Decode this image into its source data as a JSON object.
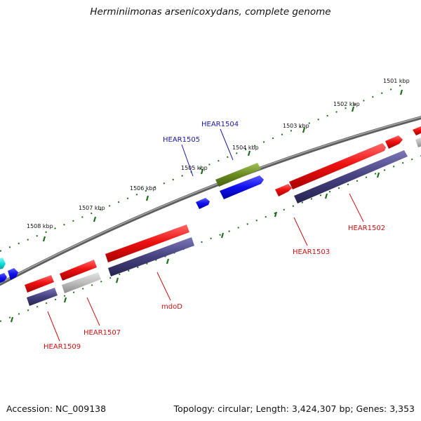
{
  "title": "Herminiimonas arsenicoxydans, complete genome",
  "footer": {
    "accession": "Accession: NC_009138",
    "stats": "Topology: circular; Length: 3,424,307 bp; Genes: 3,353"
  },
  "scale_labels": [
    "1501 kbp",
    "1502 kbp",
    "1503 kbp",
    "1504 kbp",
    "1505 kbp",
    "1506 kbp",
    "1507 kbp",
    "1508 kbp"
  ],
  "gene_labels": [
    {
      "text": "HEAR1504",
      "color": "#1a1aa6"
    },
    {
      "text": "HEAR1505",
      "color": "#1a1aa6"
    },
    {
      "text": "HEAR1502",
      "color": "#cc1111"
    },
    {
      "text": "HEAR1503",
      "color": "#cc1111"
    },
    {
      "text": "mdoD",
      "color": "#cc1111"
    },
    {
      "text": "HEAR1507",
      "color": "#cc1111"
    },
    {
      "text": "HEAR1509",
      "color": "#cc1111"
    }
  ],
  "colors": {
    "backbone": "#7a7a7a",
    "tick_major": "#1f6e1f",
    "tick_minor": "#3a9a3a",
    "forward_cds": "#ee1111",
    "reverse_cds": "#ee1111",
    "gene_bar": "#45417f",
    "pseudo_gene": "#b9b9b9",
    "blue_gene": "#1010ee",
    "olive_gene": "#6b8a22",
    "cyan_gene": "#11e0e0"
  }
}
